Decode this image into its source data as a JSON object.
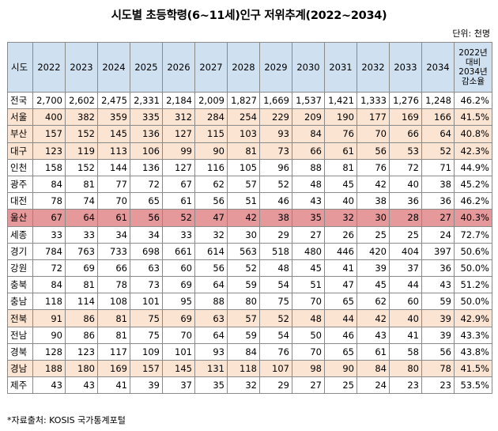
{
  "title": "시도별 초등학령(6~11세)인구 저위추계(2022~2034)",
  "unit": "단위: 천명",
  "header": {
    "region": "시도",
    "years": [
      "2022",
      "2023",
      "2024",
      "2025",
      "2026",
      "2027",
      "2028",
      "2029",
      "2030",
      "2031",
      "2032",
      "2033",
      "2034"
    ],
    "decrease_line1": "2022년",
    "decrease_line2": "대비",
    "decrease_line3": "2034년",
    "decrease_line4": "감소율"
  },
  "rows": [
    {
      "region": "전국",
      "values": [
        "2,700",
        "2,602",
        "2,475",
        "2,331",
        "2,184",
        "2,009",
        "1,827",
        "1,669",
        "1,537",
        "1,421",
        "1,333",
        "1,276",
        "1,248"
      ],
      "rate": "46.2%",
      "highlight": "none"
    },
    {
      "region": "서울",
      "values": [
        "400",
        "382",
        "359",
        "335",
        "312",
        "284",
        "254",
        "229",
        "209",
        "190",
        "177",
        "169",
        "166"
      ],
      "rate": "41.5%",
      "highlight": "beige"
    },
    {
      "region": "부산",
      "values": [
        "157",
        "152",
        "145",
        "136",
        "127",
        "115",
        "103",
        "93",
        "84",
        "76",
        "70",
        "66",
        "64"
      ],
      "rate": "40.8%",
      "highlight": "beige"
    },
    {
      "region": "대구",
      "values": [
        "123",
        "119",
        "113",
        "106",
        "99",
        "90",
        "81",
        "73",
        "66",
        "61",
        "56",
        "53",
        "52"
      ],
      "rate": "42.3%",
      "highlight": "beige"
    },
    {
      "region": "인천",
      "values": [
        "158",
        "152",
        "144",
        "136",
        "127",
        "116",
        "105",
        "96",
        "88",
        "81",
        "76",
        "72",
        "71"
      ],
      "rate": "44.9%",
      "highlight": "none"
    },
    {
      "region": "광주",
      "values": [
        "84",
        "81",
        "77",
        "72",
        "67",
        "62",
        "57",
        "52",
        "48",
        "45",
        "42",
        "40",
        "38"
      ],
      "rate": "45.2%",
      "highlight": "none"
    },
    {
      "region": "대전",
      "values": [
        "78",
        "74",
        "70",
        "65",
        "61",
        "56",
        "51",
        "46",
        "43",
        "40",
        "38",
        "36",
        "36"
      ],
      "rate": "46.2%",
      "highlight": "none"
    },
    {
      "region": "울산",
      "values": [
        "67",
        "64",
        "61",
        "56",
        "52",
        "47",
        "42",
        "38",
        "35",
        "32",
        "30",
        "28",
        "27"
      ],
      "rate": "40.3%",
      "highlight": "red"
    },
    {
      "region": "세종",
      "values": [
        "33",
        "33",
        "34",
        "34",
        "33",
        "32",
        "30",
        "29",
        "27",
        "26",
        "25",
        "25",
        "24"
      ],
      "rate": "72.7%",
      "highlight": "none"
    },
    {
      "region": "경기",
      "values": [
        "784",
        "763",
        "733",
        "698",
        "661",
        "614",
        "563",
        "518",
        "480",
        "446",
        "420",
        "404",
        "397"
      ],
      "rate": "50.6%",
      "highlight": "none"
    },
    {
      "region": "강원",
      "values": [
        "72",
        "69",
        "66",
        "63",
        "60",
        "56",
        "52",
        "48",
        "45",
        "41",
        "39",
        "37",
        "36"
      ],
      "rate": "50.0%",
      "highlight": "none"
    },
    {
      "region": "충북",
      "values": [
        "84",
        "81",
        "78",
        "73",
        "69",
        "64",
        "59",
        "54",
        "51",
        "47",
        "45",
        "44",
        "43"
      ],
      "rate": "51.2%",
      "highlight": "none"
    },
    {
      "region": "충남",
      "values": [
        "118",
        "114",
        "108",
        "101",
        "95",
        "88",
        "80",
        "75",
        "70",
        "65",
        "62",
        "60",
        "59"
      ],
      "rate": "50.0%",
      "highlight": "none"
    },
    {
      "region": "전북",
      "values": [
        "91",
        "86",
        "81",
        "75",
        "69",
        "63",
        "57",
        "52",
        "48",
        "44",
        "42",
        "40",
        "39"
      ],
      "rate": "42.9%",
      "highlight": "beige"
    },
    {
      "region": "전남",
      "values": [
        "90",
        "86",
        "81",
        "75",
        "70",
        "64",
        "59",
        "54",
        "50",
        "46",
        "43",
        "41",
        "39"
      ],
      "rate": "43.3%",
      "highlight": "none"
    },
    {
      "region": "경북",
      "values": [
        "128",
        "123",
        "117",
        "109",
        "101",
        "93",
        "84",
        "76",
        "70",
        "65",
        "61",
        "58",
        "56"
      ],
      "rate": "43.8%",
      "highlight": "none"
    },
    {
      "region": "경남",
      "values": [
        "188",
        "180",
        "169",
        "157",
        "145",
        "131",
        "118",
        "107",
        "98",
        "90",
        "84",
        "80",
        "78"
      ],
      "rate": "41.5%",
      "highlight": "beige"
    },
    {
      "region": "제주",
      "values": [
        "43",
        "43",
        "41",
        "39",
        "37",
        "35",
        "32",
        "29",
        "27",
        "25",
        "24",
        "23",
        "23"
      ],
      "rate": "53.5%",
      "highlight": "none"
    }
  ],
  "footnote": "*자료출처: KOSIS 국가통계포털"
}
